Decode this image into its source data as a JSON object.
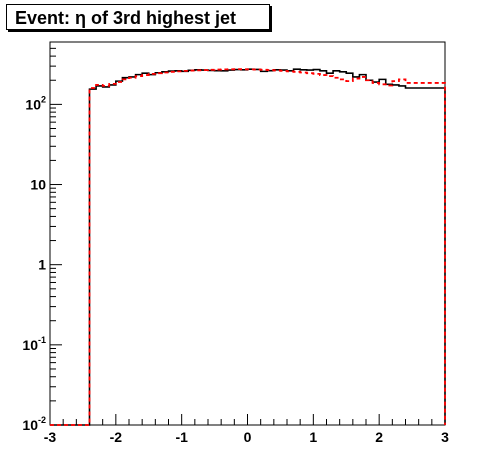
{
  "chart_data": {
    "type": "step",
    "title": "Event: η of 3rd highest jet",
    "xlabel": "",
    "ylabel": "",
    "xlim": [
      -3,
      3
    ],
    "ylim": [
      0.01,
      600
    ],
    "yscale": "log",
    "grid": false,
    "x_ticks": [
      -3,
      -2,
      -1,
      0,
      1,
      2,
      3
    ],
    "x_tick_labels": [
      "-3",
      "-2",
      "-1",
      "0",
      "1",
      "2",
      "3"
    ],
    "y_ticks": [
      {
        "base": "10",
        "exp": "-2",
        "value": 0.01
      },
      {
        "base": "10",
        "exp": "-1",
        "value": 0.1
      },
      {
        "base": "1",
        "exp": "",
        "value": 1
      },
      {
        "base": "10",
        "exp": "",
        "value": 10
      },
      {
        "base": "10",
        "exp": "2",
        "value": 100
      }
    ],
    "bin_edges": [
      -3.0,
      -2.4,
      -2.3,
      -2.2,
      -2.1,
      -2.0,
      -1.9,
      -1.8,
      -1.7,
      -1.6,
      -1.5,
      -1.4,
      -1.3,
      -1.2,
      -1.1,
      -1.0,
      -0.9,
      -0.8,
      -0.7,
      -0.6,
      -0.5,
      -0.4,
      -0.3,
      -0.2,
      -0.1,
      0.0,
      0.1,
      0.2,
      0.3,
      0.4,
      0.5,
      0.6,
      0.7,
      0.8,
      0.9,
      1.0,
      1.1,
      1.2,
      1.3,
      1.4,
      1.5,
      1.6,
      1.7,
      1.8,
      1.9,
      2.0,
      2.1,
      2.2,
      2.3,
      2.4,
      3.0
    ],
    "series": [
      {
        "color": "#000000",
        "style": "solid",
        "values": [
          0.01,
          155,
          170,
          165,
          175,
          195,
          215,
          220,
          235,
          245,
          235,
          248,
          255,
          260,
          262,
          258,
          266,
          270,
          268,
          265,
          263,
          262,
          268,
          272,
          270,
          275,
          273,
          258,
          263,
          270,
          268,
          262,
          275,
          270,
          268,
          272,
          262,
          245,
          262,
          255,
          245,
          220,
          235,
          200,
          190,
          205,
          178,
          175,
          170,
          160,
          0.01
        ]
      },
      {
        "color": "#ff0000",
        "style": "dashed",
        "values": [
          0.01,
          160,
          175,
          170,
          180,
          190,
          205,
          215,
          225,
          232,
          240,
          245,
          250,
          255,
          258,
          262,
          264,
          266,
          268,
          270,
          272,
          273,
          274,
          275,
          274,
          273,
          272,
          270,
          268,
          265,
          262,
          258,
          255,
          250,
          245,
          240,
          232,
          225,
          215,
          205,
          195,
          210,
          220,
          200,
          185,
          178,
          172,
          195,
          205,
          185,
          0.01
        ]
      }
    ]
  }
}
